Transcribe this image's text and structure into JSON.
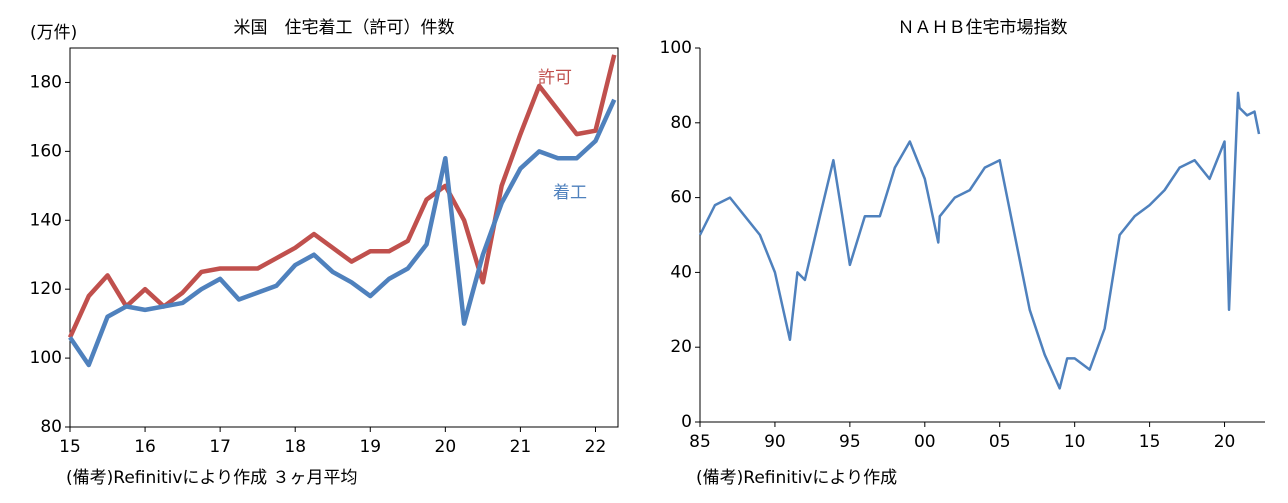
{
  "chart_data": [
    {
      "type": "line",
      "title": "米国　住宅着工（許可）件数",
      "ylabel": "(万件)",
      "note": "(備考)Refinitivにより作成 ３ヶ月平均",
      "x": [
        15,
        15.25,
        15.5,
        15.75,
        16,
        16.25,
        16.5,
        16.75,
        17,
        17.25,
        17.5,
        17.75,
        18,
        18.25,
        18.5,
        18.75,
        19,
        19.25,
        19.5,
        19.75,
        20,
        20.25,
        20.5,
        20.75,
        21,
        21.25,
        21.5,
        21.75,
        22,
        22.25
      ],
      "series": [
        {
          "name": "許可",
          "color": "#c0504d",
          "values": [
            106,
            118,
            124,
            115,
            120,
            115,
            119,
            125,
            126,
            126,
            126,
            129,
            132,
            136,
            132,
            128,
            131,
            131,
            134,
            146,
            150,
            140,
            122,
            150,
            165,
            179,
            172,
            165,
            166,
            188
          ]
        },
        {
          "name": "着工",
          "color": "#4f81bd",
          "values": [
            106,
            98,
            112,
            115,
            114,
            115,
            116,
            120,
            123,
            117,
            119,
            121,
            127,
            130,
            125,
            122,
            118,
            123,
            126,
            133,
            158,
            110,
            130,
            145,
            155,
            160,
            158,
            158,
            163,
            175
          ]
        }
      ],
      "xlim": [
        15,
        22.3
      ],
      "xticks": [
        15,
        16,
        17,
        18,
        19,
        20,
        21,
        22
      ],
      "ylim": [
        80,
        190
      ],
      "yticks": [
        80,
        100,
        120,
        140,
        160,
        180
      ]
    },
    {
      "type": "line",
      "title": "ＮＡＨＢ住宅市場指数",
      "note": "(備考)Refinitivにより作成",
      "x": [
        1985,
        1986,
        1987,
        1988,
        1989,
        1990,
        1991,
        1991.5,
        1992,
        1993,
        1993.9,
        1994.5,
        1995,
        1996,
        1997,
        1998,
        1999,
        2000,
        2000.9,
        2001,
        2002,
        2003,
        2004,
        2005,
        2006,
        2007,
        2008,
        2009,
        2009.5,
        2010,
        2011,
        2012,
        2013,
        2014,
        2015,
        2016,
        2017,
        2018,
        2019,
        2020,
        2020.3,
        2020.9,
        2021,
        2021.5,
        2022,
        2022.3
      ],
      "series": [
        {
          "name": "NAHB",
          "color": "#4f81bd",
          "values": [
            50,
            58,
            60,
            55,
            50,
            40,
            22,
            40,
            38,
            55,
            70,
            55,
            42,
            55,
            55,
            68,
            75,
            65,
            48,
            55,
            60,
            62,
            68,
            70,
            50,
            30,
            18,
            9,
            17,
            17,
            14,
            25,
            50,
            55,
            58,
            62,
            68,
            70,
            65,
            75,
            30,
            88,
            84,
            82,
            83,
            77
          ]
        }
      ],
      "xlim": [
        1985,
        2022.7
      ],
      "xticks": [
        {
          "value": 1985,
          "label": "85"
        },
        {
          "value": 1990,
          "label": "90"
        },
        {
          "value": 1995,
          "label": "95"
        },
        {
          "value": 2000,
          "label": "00"
        },
        {
          "value": 2005,
          "label": "05"
        },
        {
          "value": 2010,
          "label": "10"
        },
        {
          "value": 2015,
          "label": "15"
        },
        {
          "value": 2020,
          "label": "20"
        }
      ],
      "ylim": [
        0,
        100
      ],
      "yticks": [
        0,
        20,
        40,
        60,
        80,
        100
      ]
    }
  ]
}
